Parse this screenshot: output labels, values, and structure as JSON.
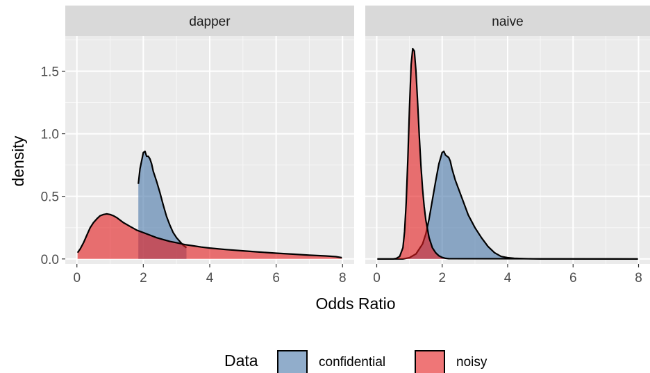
{
  "chart_data": {
    "type": "area",
    "subtype": "density",
    "facet_layout": "1x2 panels sharing y axis",
    "xlabel": "Odds Ratio",
    "ylabel": "density",
    "xlim": [
      -0.35,
      8.35
    ],
    "ylim": [
      -0.04,
      1.78
    ],
    "x_ticks": [
      0,
      2,
      4,
      6,
      8
    ],
    "y_ticks": [
      0.0,
      0.5,
      1.0,
      1.5
    ],
    "y_tick_labels": [
      "0.0",
      "0.5",
      "1.0",
      "1.5"
    ],
    "grid": true,
    "legend": {
      "title": "Data",
      "position": "bottom",
      "entries": [
        {
          "label": "confidential",
          "color": "#4876a8"
        },
        {
          "label": "noisy",
          "color": "#e41a1c"
        }
      ]
    },
    "fill_opacity": 0.6,
    "panels": [
      {
        "strip": "dapper",
        "series": [
          {
            "name": "confidential",
            "color": "#4876a8",
            "x_start": 1.85,
            "x_end": 3.3,
            "x": [
              1.85,
              1.9,
              2.0,
              2.05,
              2.1,
              2.15,
              2.2,
              2.25,
              2.3,
              2.35,
              2.4,
              2.5,
              2.6,
              2.7,
              2.8,
              2.9,
              3.0,
              3.1,
              3.2,
              3.3
            ],
            "y": [
              0.6,
              0.72,
              0.85,
              0.86,
              0.82,
              0.82,
              0.8,
              0.76,
              0.7,
              0.66,
              0.62,
              0.53,
              0.43,
              0.34,
              0.27,
              0.21,
              0.17,
              0.14,
              0.11,
              0.09
            ]
          },
          {
            "name": "noisy",
            "color": "#e41a1c",
            "x_start": 0.02,
            "x_end": 7.98,
            "x": [
              0.02,
              0.1,
              0.2,
              0.3,
              0.4,
              0.5,
              0.6,
              0.7,
              0.8,
              0.9,
              1.0,
              1.1,
              1.2,
              1.3,
              1.4,
              1.5,
              1.6,
              1.7,
              1.8,
              1.9,
              2.0,
              2.2,
              2.4,
              2.6,
              2.8,
              3.0,
              3.25,
              3.5,
              3.75,
              4.0,
              4.5,
              5.0,
              5.5,
              6.0,
              6.5,
              7.0,
              7.5,
              7.8,
              7.98
            ],
            "y": [
              0.05,
              0.08,
              0.13,
              0.19,
              0.25,
              0.29,
              0.32,
              0.345,
              0.355,
              0.36,
              0.355,
              0.345,
              0.33,
              0.31,
              0.29,
              0.275,
              0.26,
              0.245,
              0.23,
              0.22,
              0.21,
              0.19,
              0.17,
              0.155,
              0.14,
              0.13,
              0.115,
              0.105,
              0.095,
              0.087,
              0.075,
              0.065,
              0.055,
              0.046,
              0.038,
              0.03,
              0.024,
              0.018,
              0.01
            ]
          }
        ]
      },
      {
        "strip": "naive",
        "series": [
          {
            "name": "confidential",
            "color": "#4876a8",
            "x_start": 0.02,
            "x_end": 7.98,
            "x": [
              0.02,
              0.8,
              1.0,
              1.2,
              1.4,
              1.5,
              1.6,
              1.7,
              1.8,
              1.9,
              2.0,
              2.05,
              2.1,
              2.15,
              2.2,
              2.25,
              2.3,
              2.4,
              2.5,
              2.6,
              2.7,
              2.8,
              3.0,
              3.2,
              3.4,
              3.6,
              3.8,
              4.0,
              4.2,
              4.5,
              5.0,
              6.0,
              7.98
            ],
            "y": [
              0.0,
              0.0,
              0.01,
              0.04,
              0.12,
              0.2,
              0.32,
              0.47,
              0.62,
              0.76,
              0.85,
              0.86,
              0.83,
              0.82,
              0.81,
              0.78,
              0.72,
              0.63,
              0.56,
              0.49,
              0.42,
              0.35,
              0.25,
              0.17,
              0.1,
              0.05,
              0.02,
              0.01,
              0.005,
              0.002,
              0.0,
              0.0,
              0.0
            ]
          },
          {
            "name": "noisy",
            "color": "#e41a1c",
            "x_start": 0.02,
            "x_end": 7.98,
            "x": [
              0.02,
              0.5,
              0.6,
              0.7,
              0.8,
              0.85,
              0.9,
              0.95,
              1.0,
              1.05,
              1.1,
              1.15,
              1.2,
              1.25,
              1.3,
              1.35,
              1.4,
              1.45,
              1.5,
              1.6,
              1.7,
              1.8,
              1.9,
              2.0,
              2.1,
              2.2,
              7.98
            ],
            "y": [
              0.0,
              0.0,
              0.005,
              0.02,
              0.09,
              0.22,
              0.45,
              0.8,
              1.2,
              1.55,
              1.68,
              1.66,
              1.5,
              1.25,
              0.98,
              0.75,
              0.56,
              0.42,
              0.31,
              0.17,
              0.09,
              0.05,
              0.025,
              0.012,
              0.005,
              0.002,
              0.0
            ]
          }
        ]
      }
    ]
  }
}
